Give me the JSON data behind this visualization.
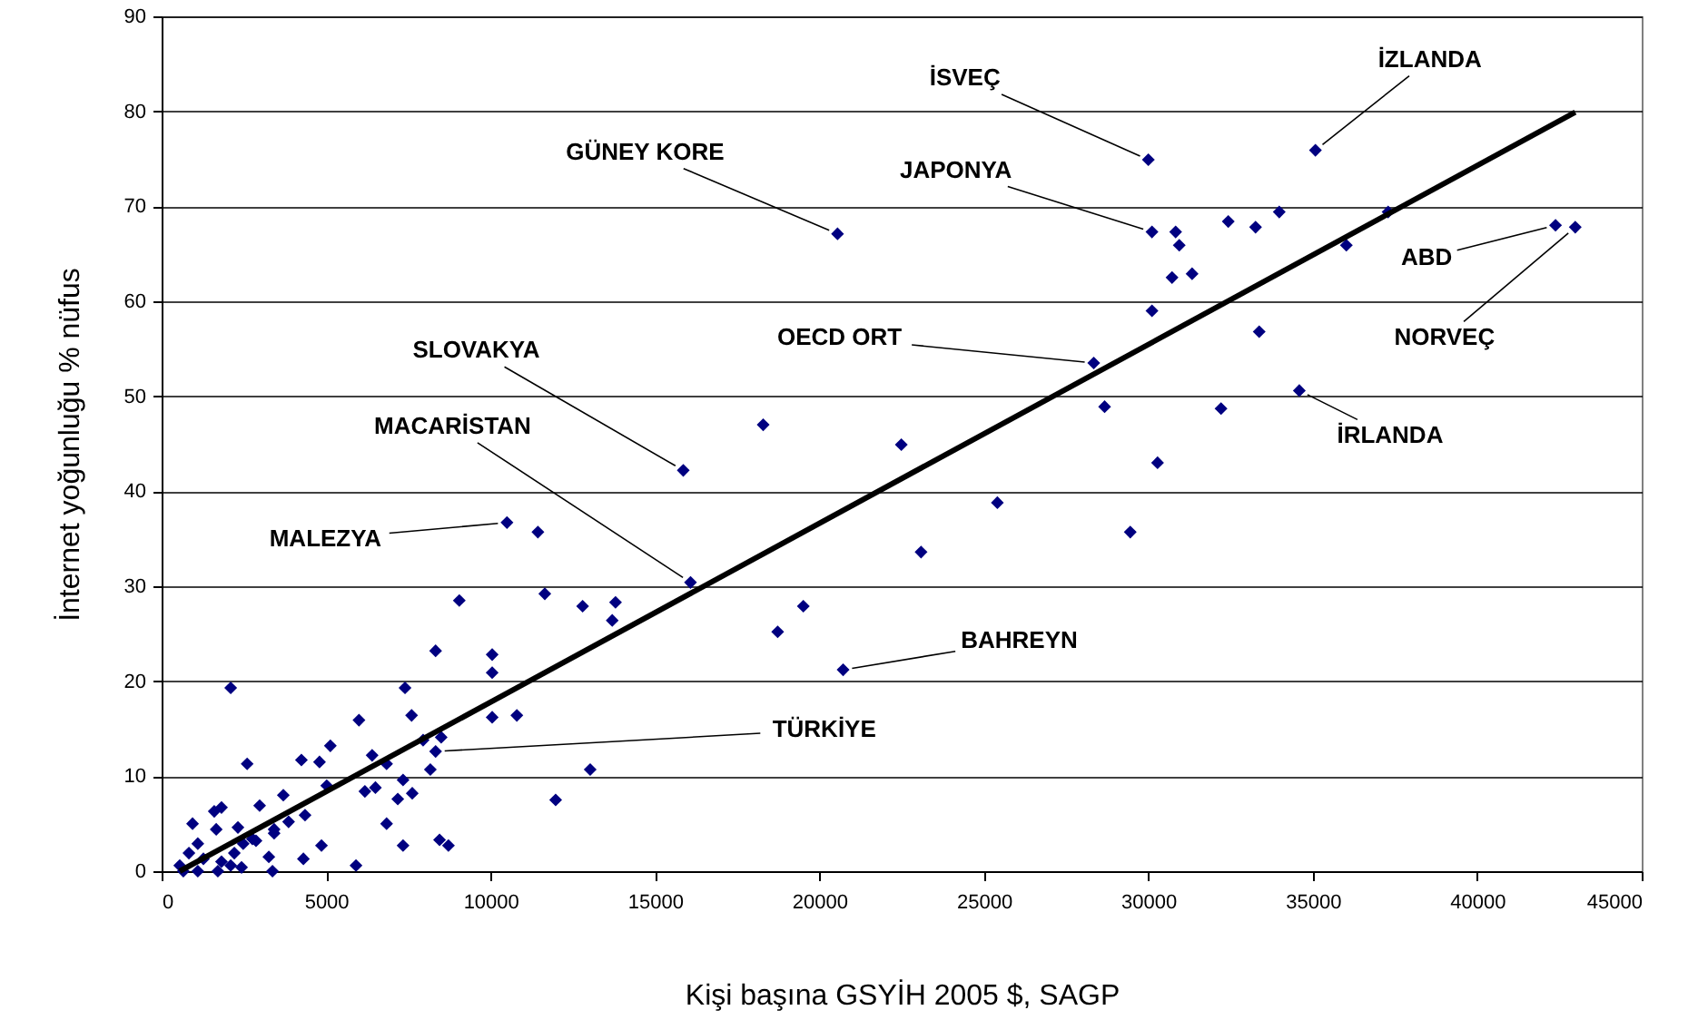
{
  "chart_data": {
    "type": "scatter",
    "xlabel": "Kişi başına GSYİH 2005 $, SAGP",
    "ylabel": "İnternet yoğunluğu % nüfus",
    "xlim": [
      0,
      45000
    ],
    "xticks": [
      0,
      5000,
      10000,
      15000,
      20000,
      25000,
      30000,
      35000,
      40000,
      45000
    ],
    "ylim": [
      0,
      90
    ],
    "yticks": [
      0,
      10,
      20,
      30,
      40,
      50,
      60,
      70,
      80,
      90
    ],
    "grid": "y",
    "legend": false,
    "series": [
      {
        "type": "scatter",
        "color": "#000080",
        "marker": "diamond",
        "x": [
          9050,
          11650,
          12800,
          13800,
          13700,
          8330,
          10050,
          10050,
          2100,
          7400,
          7600,
          10050,
          10800,
          6000,
          5130,
          7950,
          8500,
          8330,
          6400,
          6840,
          4800,
          4250,
          2600,
          8170,
          13030,
          5020,
          7340,
          6180,
          6500,
          7620,
          7180,
          3700,
          2980,
          11980,
          4360,
          3860,
          6840,
          1820,
          940,
          1600,
          2320,
          1660,
          2760,
          3420,
          3420,
          8450,
          8720,
          7340,
          4860,
          4310,
          3260,
          5910,
          3370,
          2210,
          2480,
          2870,
          1100,
          1270,
          550,
          830,
          1820,
          2100,
          1100,
          1710,
          2430,
          660,
          30000,
          35080,
          30110,
          30830,
          30940,
          32430,
          33260,
          33980,
          37290,
          36020,
          42380,
          42980,
          20550,
          30720,
          31330,
          30110,
          28340,
          33370,
          34590,
          28670,
          32210,
          22490,
          30280,
          25410,
          29450,
          23090,
          20720,
          15860,
          18290,
          10500,
          11440,
          16080,
          19510,
          18730
        ],
        "values": [
          28.5,
          29.2,
          27.9,
          28.3,
          26.4,
          23.2,
          22.8,
          20.9,
          19.3,
          19.3,
          16.4,
          16.2,
          16.4,
          15.9,
          13.2,
          13.8,
          14.1,
          12.6,
          12.2,
          11.3,
          11.5,
          11.7,
          11.3,
          10.7,
          10.7,
          9.0,
          9.6,
          8.4,
          8.8,
          8.2,
          7.6,
          8.0,
          6.9,
          7.5,
          5.9,
          5.2,
          5.0,
          6.7,
          5.0,
          6.3,
          4.6,
          4.4,
          3.4,
          4.0,
          4.4,
          3.3,
          2.7,
          2.7,
          2.7,
          1.3,
          1.5,
          0.6,
          0,
          1.9,
          2.9,
          3.2,
          2.9,
          1.3,
          0.6,
          1.9,
          1.0,
          0.6,
          0,
          0,
          0.4,
          0,
          74.9,
          75.9,
          67.3,
          67.3,
          65.9,
          68.4,
          67.8,
          69.4,
          69.4,
          65.9,
          68.0,
          67.8,
          67.1,
          62.5,
          62.9,
          59.0,
          53.5,
          56.8,
          50.6,
          48.9,
          48.7,
          44.9,
          43.0,
          38.8,
          35.7,
          33.6,
          21.2,
          42.2,
          47.0,
          36.7,
          35.7,
          30.4,
          27.9,
          25.2
        ]
      },
      {
        "type": "line",
        "color": "#000000",
        "line_style": "solid",
        "x": [
          550,
          42980
        ],
        "values": [
          0,
          79.9
        ]
      }
    ],
    "annotations": [
      {
        "text": "GÜNEY KORE",
        "x": 20550,
        "y": 67.1
      },
      {
        "text": "İSVEÇ",
        "x": 30000,
        "y": 74.9
      },
      {
        "text": "İZLANDA",
        "x": 35080,
        "y": 75.9
      },
      {
        "text": "JAPONYA",
        "x": 30110,
        "y": 67.3
      },
      {
        "text": "ABD",
        "x": 42380,
        "y": 68.0
      },
      {
        "text": "NORVEÇ",
        "x": 42980,
        "y": 67.8
      },
      {
        "text": "OECD ORT",
        "x": 28340,
        "y": 53.5
      },
      {
        "text": "SLOVAKYA",
        "x": 15860,
        "y": 42.2
      },
      {
        "text": "İRLANDA",
        "x": 34590,
        "y": 50.6
      },
      {
        "text": "MACARİSTAN",
        "x": 16080,
        "y": 30.4
      },
      {
        "text": "MALEZYA",
        "x": 10500,
        "y": 36.7
      },
      {
        "text": "BAHREYN",
        "x": 20720,
        "y": 21.2
      },
      {
        "text": "TÜRKİYE",
        "x": 8330,
        "y": 12.6
      }
    ]
  }
}
